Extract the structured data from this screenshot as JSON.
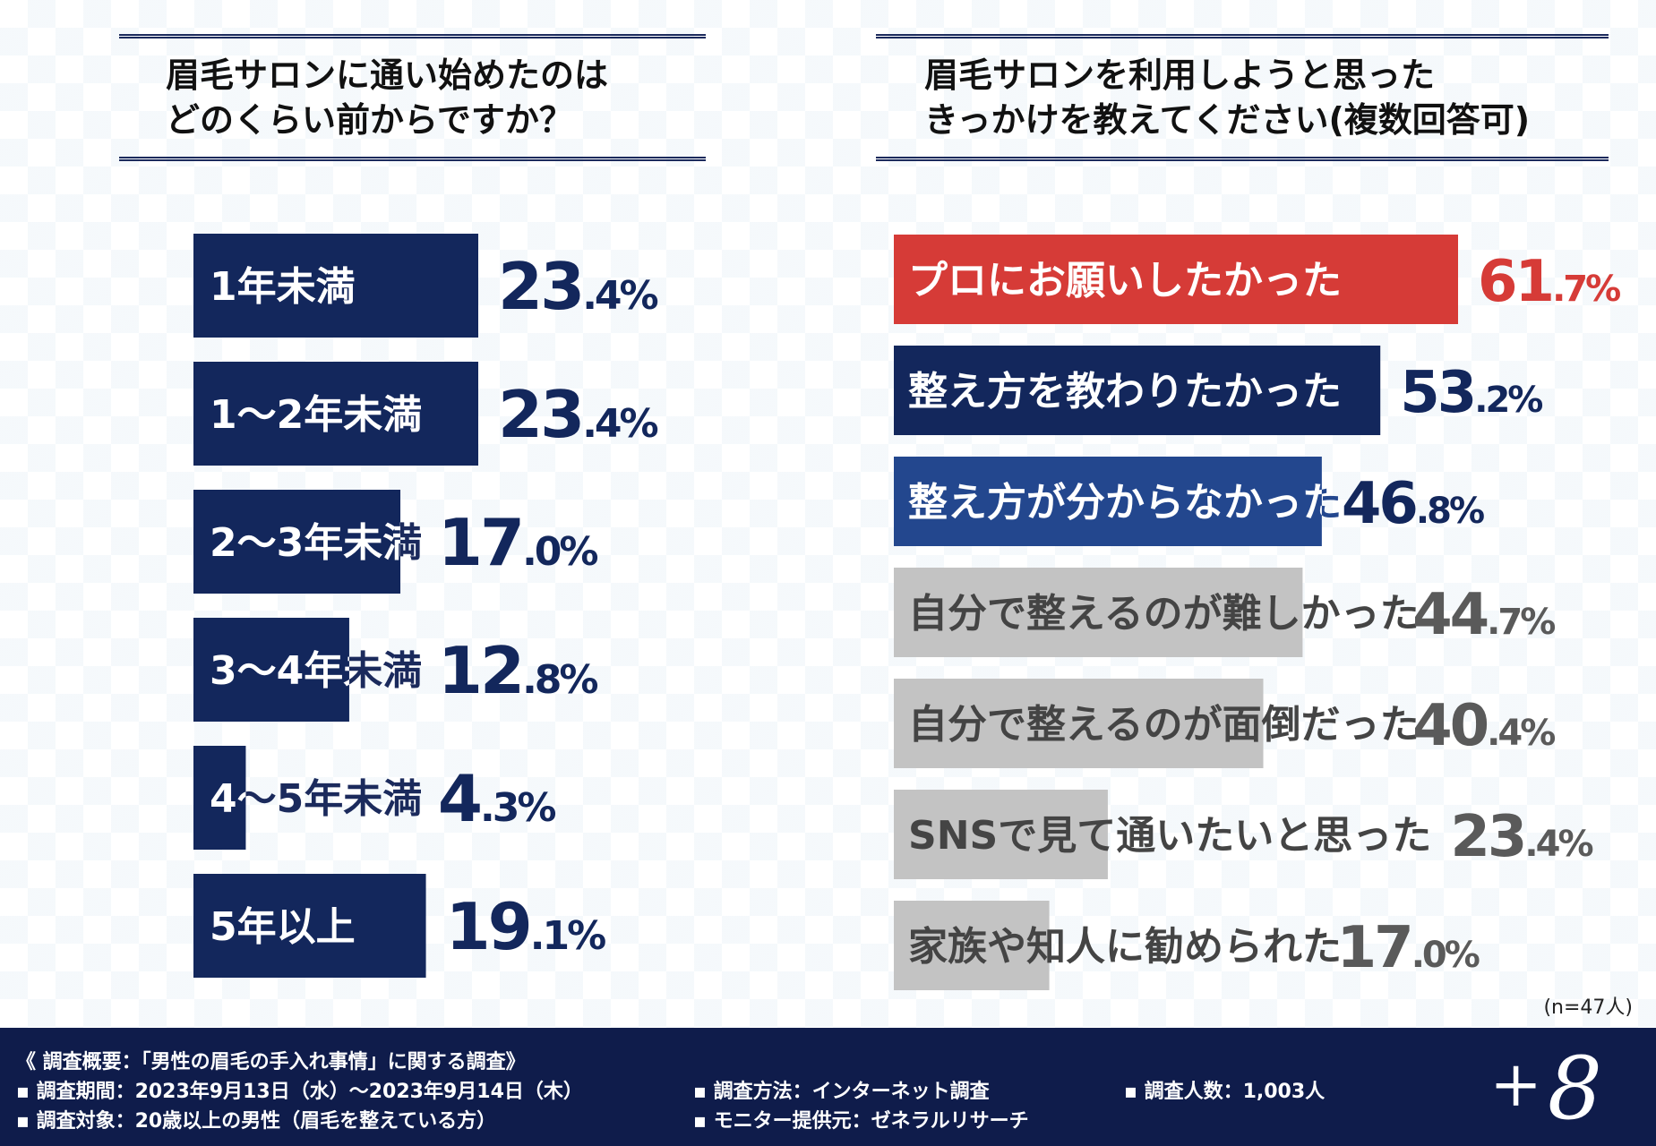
{
  "left_title": "眉毛サロンに通い始めたのは\nどのくらい前からですか？",
  "right_title": "眉毛サロンを利用しようと思った\nきっかけを教えてください(複数回答可)",
  "sample_note": "(n=47人)",
  "footer": {
    "summary": "《 調査概要：「男性の眉毛の手入れ事情」に関する調査》",
    "period": "▪ 調査期間：2023年9月13日（水）～2023年9月14日（木）",
    "target": "▪ 調査対象：20歳以上の男性（眉毛を整えている方）",
    "method": "▪ 調査方法：インターネット調査",
    "monitor": "▪ モニター提供元：ゼネラルリサーチ",
    "count": "▪ 調査人数：1,003人",
    "logo_plus": "+",
    "logo_num": "8"
  },
  "colors": {
    "navy": "#13275c",
    "blue": "#23478e",
    "red": "#d63b37",
    "gray": "#c3c3c3",
    "gray_text": "#5a5a5a"
  },
  "chart_data": [
    {
      "type": "bar",
      "orientation": "horizontal",
      "title": "眉毛サロンに通い始めたのはどのくらい前からですか？",
      "categories": [
        "1年未満",
        "1〜2年未満",
        "2〜3年未満",
        "3〜4年未満",
        "4〜5年未満",
        "5年以上"
      ],
      "values": [
        23.4,
        23.4,
        17.0,
        12.8,
        4.3,
        19.1
      ],
      "labels": [
        "23.4%",
        "23.4%",
        "17.0%",
        "12.8%",
        "4.3%",
        "19.1%"
      ],
      "unit": "%"
    },
    {
      "type": "bar",
      "orientation": "horizontal",
      "title": "眉毛サロンを利用しようと思ったきっかけを教えてください(複数回答可)",
      "categories": [
        "プロにお願いしたかった",
        "整え方を教わりたかった",
        "整え方が分からなかった",
        "自分で整えるのが難しかった",
        "自分で整えるのが面倒だった",
        "SNSで見て通いたいと思った",
        "家族や知人に勧められた"
      ],
      "values": [
        61.7,
        53.2,
        46.8,
        44.7,
        40.4,
        23.4,
        17.0
      ],
      "labels": [
        "61.7%",
        "53.2%",
        "46.8%",
        "44.7%",
        "40.4%",
        "23.4%",
        "17.0%"
      ],
      "unit": "%",
      "note": "(n=47人)"
    }
  ]
}
